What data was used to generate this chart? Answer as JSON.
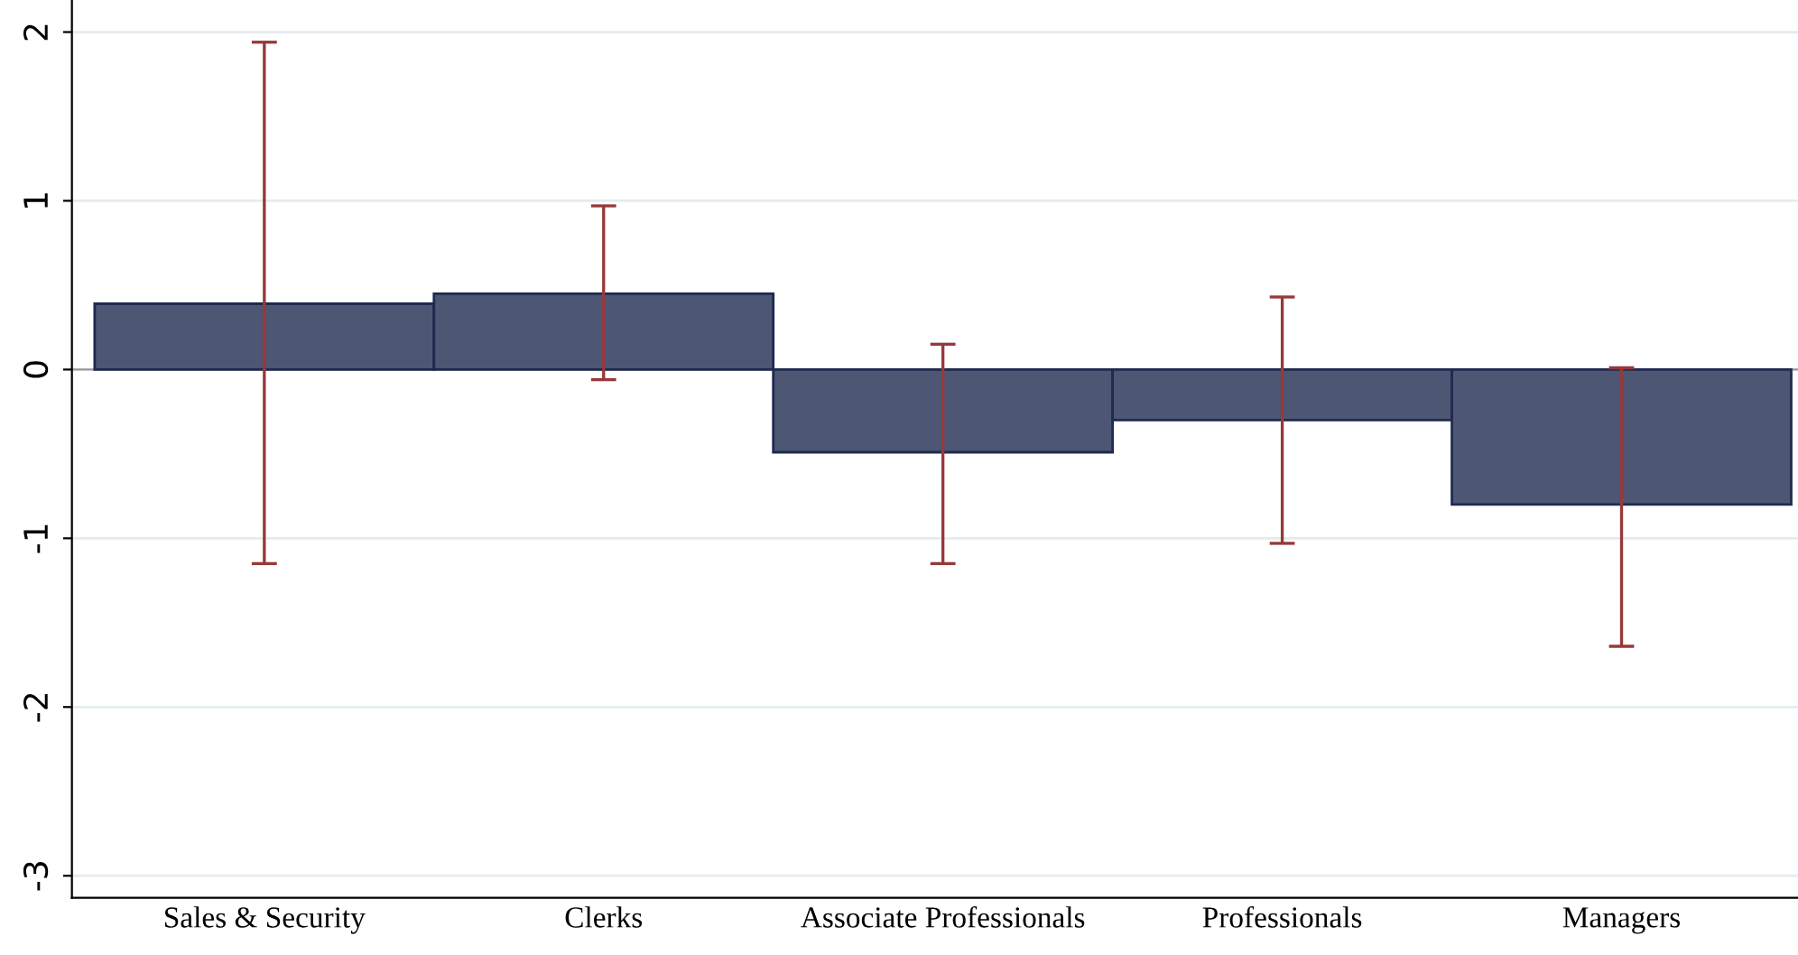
{
  "chart_data": {
    "type": "bar",
    "categories": [
      "Sales & Security",
      "Clerks",
      "Associate Professionals",
      "Professionals",
      "Managers"
    ],
    "series": [
      {
        "color": "#4d5673",
        "values": [
          0.39,
          0.45,
          -0.49,
          -0.3,
          -0.8
        ],
        "errors": [
          [
            -1.15,
            1.94
          ],
          [
            -0.06,
            0.97
          ],
          [
            -1.15,
            0.15
          ],
          [
            -1.03,
            0.43
          ],
          [
            -1.64,
            0.01
          ]
        ]
      }
    ],
    "ylim": [
      -3.13,
      2.19
    ],
    "yticks": [
      -3,
      -2,
      -1,
      0,
      1,
      2
    ],
    "grid": "y",
    "legend": false
  }
}
